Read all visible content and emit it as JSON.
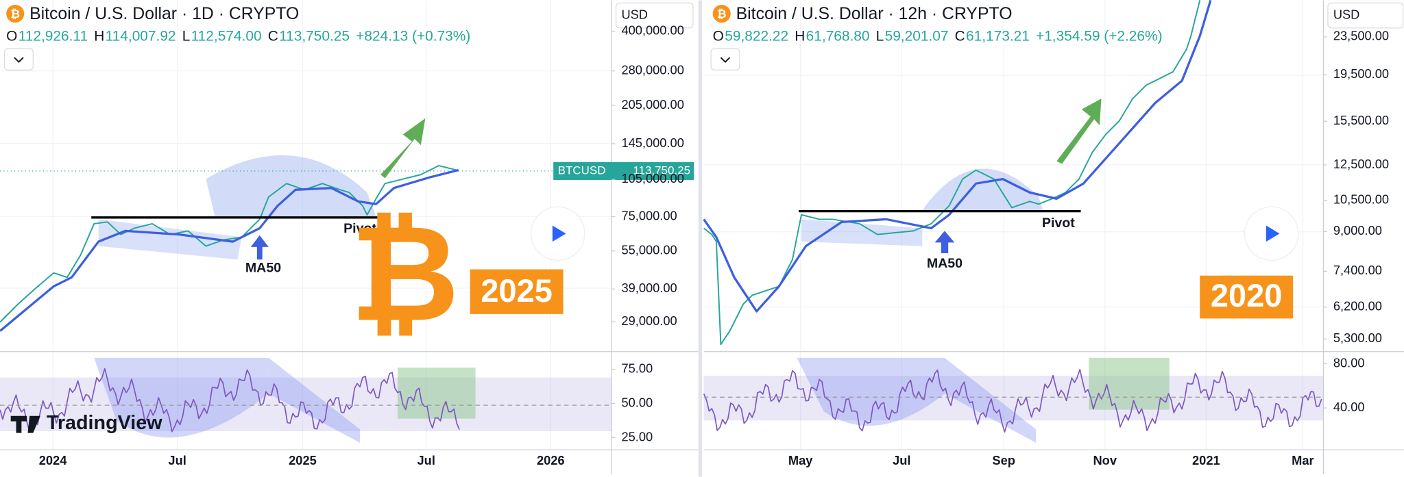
{
  "logo_symbol": "₿",
  "brand": "TradingView",
  "panels": [
    {
      "title": "Bitcoin / U.S. Dollar · 1D · CRYPTO",
      "currency": "USD",
      "ohlc": {
        "o_label": "O",
        "o": "112,926.11",
        "h_label": "H",
        "h": "114,007.92",
        "l_label": "L",
        "l": "112,574.00",
        "c_label": "C",
        "c": "113,750.25",
        "change": "+824.13 (+0.73%)"
      },
      "price_tag": {
        "symbol": "BTCUSD",
        "price": "113,750.25"
      },
      "annotations": {
        "pivot": "Pivot",
        "ma": "MA50",
        "year": "2025"
      },
      "price_axis": {
        "log": true,
        "ylim": [
          22150,
          530000
        ],
        "yticks": [
          {
            "value": 400000,
            "label": "400,000.00"
          },
          {
            "value": 280000,
            "label": "280,000.00"
          },
          {
            "value": 205000,
            "label": "205,000.00"
          },
          {
            "value": 145000,
            "label": "145,000.00"
          },
          {
            "value": 105000,
            "label": "105,000.00"
          },
          {
            "value": 75000,
            "label": "75,000.00"
          },
          {
            "value": 55000,
            "label": "55,000.00"
          },
          {
            "value": 39000,
            "label": "39,000.00"
          },
          {
            "value": 29000,
            "label": "29,000.00"
          }
        ]
      },
      "rsi_axis": {
        "ylim": [
          16,
          88
        ],
        "yticks": [
          {
            "value": 75,
            "label": "75.00"
          },
          {
            "value": 50,
            "label": "50.00"
          },
          {
            "value": 25,
            "label": "25.00"
          }
        ]
      },
      "time_labels": [
        "2024",
        "Jul",
        "2025",
        "Jul",
        "2026"
      ]
    },
    {
      "title": "Bitcoin / U.S. Dollar · 12h · CRYPTO",
      "currency": "USD",
      "ohlc": {
        "o_label": "O",
        "o": "59,822.22",
        "h_label": "H",
        "h": "61,768.80",
        "l_label": "L",
        "l": "59,201.07",
        "c_label": "C",
        "c": "61,173.21",
        "change": "+1,354.59 (+2.26%)"
      },
      "annotations": {
        "pivot": "Pivot",
        "ma": "MA50",
        "year": "2020"
      },
      "price_axis": {
        "log": true,
        "ylim": [
          4980,
          28150
        ],
        "yticks": [
          {
            "value": 23500,
            "label": "23,500.00"
          },
          {
            "value": 19500,
            "label": "19,500.00"
          },
          {
            "value": 15500,
            "label": "15,500.00"
          },
          {
            "value": 12500,
            "label": "12,500.00"
          },
          {
            "value": 10500,
            "label": "10,500.00"
          },
          {
            "value": 9000,
            "label": "9,000.00"
          },
          {
            "value": 7400,
            "label": "7,400.00"
          },
          {
            "value": 6200,
            "label": "6,200.00"
          },
          {
            "value": 5300,
            "label": "5,300.00"
          }
        ]
      },
      "rsi_axis": {
        "ylim": [
          2,
          91
        ],
        "yticks": [
          {
            "value": 80,
            "label": "80.00"
          },
          {
            "value": 40,
            "label": "40.00"
          }
        ]
      },
      "time_labels": [
        "May",
        "Jul",
        "Sep",
        "Nov",
        "2021",
        "Mar"
      ]
    }
  ]
}
